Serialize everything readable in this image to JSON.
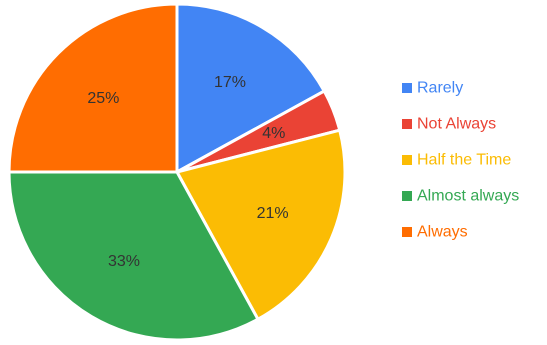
{
  "chart_data": {
    "type": "pie",
    "categories": [
      "Rarely",
      "Not Always",
      "Half the Time",
      "Almost always",
      "Always"
    ],
    "values": [
      17,
      4,
      21,
      33,
      25
    ],
    "labels": [
      "17%",
      "4%",
      "21%",
      "33%",
      "25%"
    ],
    "colors": [
      "#4285f4",
      "#ea4335",
      "#fbbc04",
      "#34a853",
      "#ff6d01"
    ],
    "start_angle_deg": 0,
    "direction": "clockwise",
    "legend_position": "right"
  }
}
